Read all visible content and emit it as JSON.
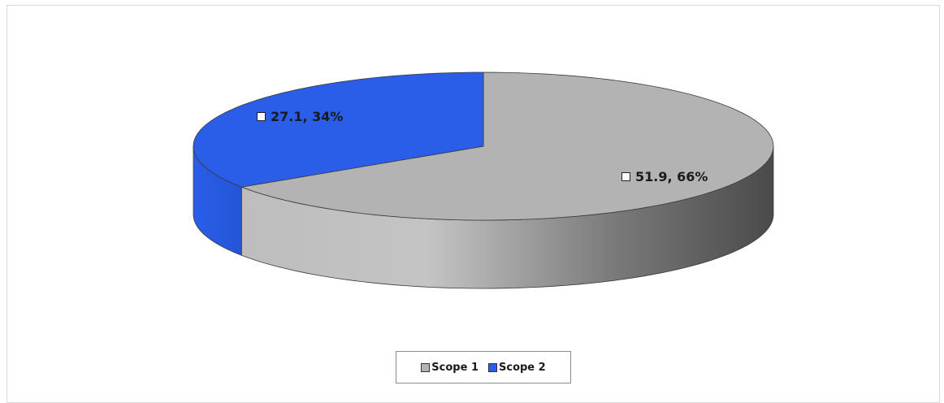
{
  "chart_data": {
    "type": "pie",
    "title": "",
    "categories": [
      "Scope 1",
      "Scope 2"
    ],
    "values": [
      51.9,
      27.1
    ],
    "percentages": [
      66,
      34
    ],
    "data_labels": [
      "51.9, 66%",
      "27.1, 34%"
    ],
    "colors": [
      "#b3b3b3",
      "#2a5ee8"
    ],
    "legend_position": "bottom",
    "style": "3d"
  },
  "legend": {
    "items": [
      {
        "label": "Scope 1",
        "color": "#b3b3b3"
      },
      {
        "label": "Scope 2",
        "color": "#2a5ee8"
      }
    ]
  }
}
